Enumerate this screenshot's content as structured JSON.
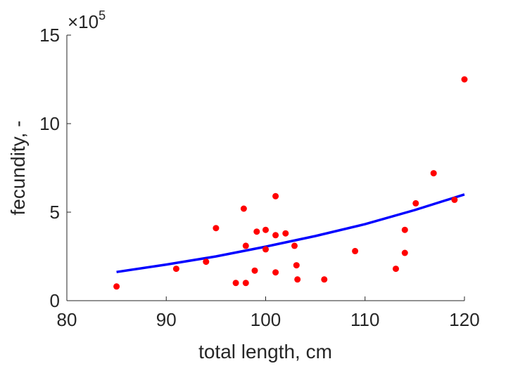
{
  "chart_data": {
    "type": "scatter",
    "xlabel": "total length, cm",
    "ylabel": "fecundity, -",
    "xlim": [
      80,
      120
    ],
    "ylim": [
      0,
      15
    ],
    "x_ticks": [
      "80",
      "90",
      "100",
      "110",
      "120"
    ],
    "y_ticks": [
      "0",
      "5",
      "10",
      "15"
    ],
    "y_exponent": {
      "base": "×10",
      "power": "5"
    },
    "grid": false,
    "legend": "none",
    "series": [
      {
        "kind": "points",
        "color": "#ff0000",
        "points": [
          [
            85,
            0.8
          ],
          [
            91,
            1.8
          ],
          [
            94,
            2.2
          ],
          [
            95,
            4.1
          ],
          [
            97,
            1.0
          ],
          [
            97.8,
            5.2
          ],
          [
            98,
            3.1
          ],
          [
            98,
            1.0
          ],
          [
            98.9,
            1.7
          ],
          [
            99.1,
            3.9
          ],
          [
            100,
            4.0
          ],
          [
            100,
            2.9
          ],
          [
            101,
            5.9
          ],
          [
            101,
            3.7
          ],
          [
            101,
            1.6
          ],
          [
            102,
            3.8
          ],
          [
            102.9,
            3.1
          ],
          [
            103.1,
            2.0
          ],
          [
            103.2,
            1.2
          ],
          [
            105.9,
            1.2
          ],
          [
            109,
            2.8
          ],
          [
            113.1,
            1.8
          ],
          [
            114,
            4.0
          ],
          [
            114,
            2.7
          ],
          [
            115.1,
            5.5
          ],
          [
            116.9,
            7.2
          ],
          [
            119,
            5.7
          ],
          [
            120,
            12.5
          ]
        ]
      },
      {
        "kind": "fit-line",
        "color": "#0000ff",
        "points": [
          [
            85,
            1.62
          ],
          [
            90,
            2.04
          ],
          [
            95,
            2.5
          ],
          [
            100,
            3.05
          ],
          [
            105,
            3.65
          ],
          [
            110,
            4.32
          ],
          [
            115,
            5.12
          ],
          [
            120,
            6.0
          ]
        ]
      }
    ]
  }
}
